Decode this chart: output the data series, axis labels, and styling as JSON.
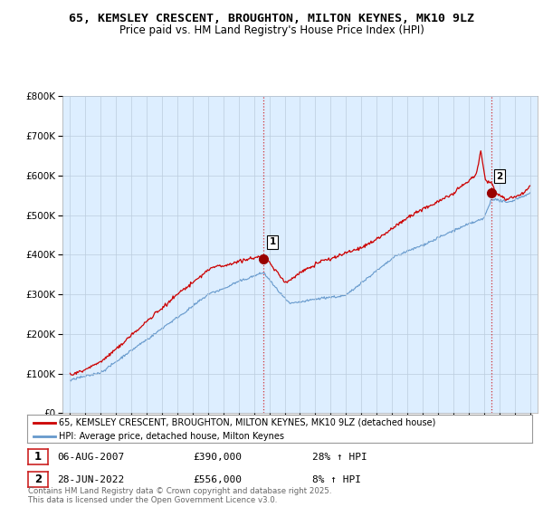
{
  "title": "65, KEMSLEY CRESCENT, BROUGHTON, MILTON KEYNES, MK10 9LZ",
  "subtitle": "Price paid vs. HM Land Registry's House Price Index (HPI)",
  "legend_line1": "65, KEMSLEY CRESCENT, BROUGHTON, MILTON KEYNES, MK10 9LZ (detached house)",
  "legend_line2": "HPI: Average price, detached house, Milton Keynes",
  "sale1_date": "06-AUG-2007",
  "sale1_price": "£390,000",
  "sale1_hpi": "28% ↑ HPI",
  "sale2_date": "28-JUN-2022",
  "sale2_price": "£556,000",
  "sale2_hpi": "8% ↑ HPI",
  "footer": "Contains HM Land Registry data © Crown copyright and database right 2025.\nThis data is licensed under the Open Government Licence v3.0.",
  "line_color_red": "#cc0000",
  "line_color_blue": "#6699cc",
  "fill_color_blue": "#ddeeff",
  "background_color": "#ffffff",
  "grid_color": "#cccccc",
  "ylim": [
    0,
    800000
  ],
  "yticks": [
    0,
    100000,
    200000,
    300000,
    400000,
    500000,
    600000,
    700000,
    800000
  ],
  "sale1_x": 2007.59,
  "sale1_y": 390000,
  "sale2_x": 2022.49,
  "sale2_y": 556000,
  "xmin": 1994.5,
  "xmax": 2025.5
}
